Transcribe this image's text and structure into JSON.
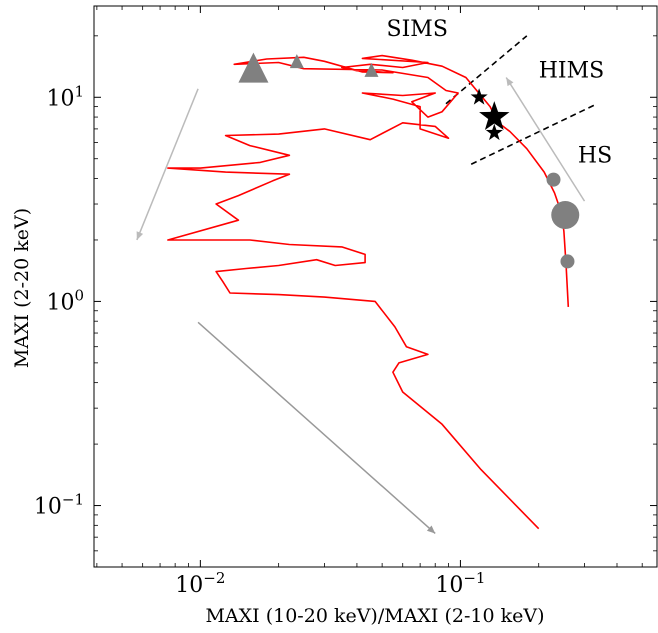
{
  "chart_data": {
    "type": "line",
    "xlabel": "MAXI (10-20 keV)/MAXI (2-10 keV)",
    "ylabel": "MAXI (2-20 keV)",
    "xscale": "log",
    "yscale": "log",
    "xlim": [
      0.0039,
      0.57
    ],
    "ylim": [
      0.05,
      28
    ],
    "grid": false,
    "x_ticks": [
      {
        "value": 0.01,
        "base": "10",
        "exp": "−2"
      },
      {
        "value": 0.1,
        "base": "10",
        "exp": "−1"
      }
    ],
    "y_ticks": [
      {
        "value": 0.1,
        "base": "10",
        "exp": "−1"
      },
      {
        "value": 1,
        "base": "10",
        "exp": "0"
      },
      {
        "value": 10,
        "base": "10",
        "exp": "1"
      }
    ],
    "series": [
      {
        "color": "#ff0000",
        "points": [
          [
            0.26,
            0.94
          ],
          [
            0.255,
            1.5
          ],
          [
            0.25,
            2.2
          ],
          [
            0.245,
            2.7
          ],
          [
            0.23,
            3.4
          ],
          [
            0.21,
            4.3
          ],
          [
            0.18,
            5.6
          ],
          [
            0.155,
            6.8
          ],
          [
            0.14,
            7.5
          ],
          [
            0.13,
            9.0
          ],
          [
            0.105,
            12.5
          ],
          [
            0.085,
            14.2
          ],
          [
            0.065,
            15.2
          ],
          [
            0.05,
            16.0
          ],
          [
            0.042,
            15.5
          ],
          [
            0.075,
            14.8
          ],
          [
            0.06,
            14.0
          ],
          [
            0.045,
            14.5
          ],
          [
            0.035,
            14.0
          ],
          [
            0.04,
            13.5
          ],
          [
            0.055,
            13.2
          ],
          [
            0.042,
            13.3
          ],
          [
            0.03,
            15.0
          ],
          [
            0.025,
            15.7
          ],
          [
            0.018,
            15.4
          ],
          [
            0.0135,
            14.5
          ],
          [
            0.02,
            14.8
          ],
          [
            0.025,
            13.8
          ],
          [
            0.05,
            13.6
          ],
          [
            0.075,
            12.5
          ],
          [
            0.088,
            10.8
          ],
          [
            0.098,
            10.5
          ],
          [
            0.085,
            8.5
          ],
          [
            0.075,
            8.0
          ],
          [
            0.065,
            9.5
          ],
          [
            0.08,
            10.5
          ],
          [
            0.06,
            10.2
          ],
          [
            0.042,
            10.5
          ],
          [
            0.055,
            9.8
          ],
          [
            0.07,
            9.0
          ],
          [
            0.07,
            7.0
          ],
          [
            0.09,
            6.3
          ],
          [
            0.08,
            7.2
          ],
          [
            0.06,
            7.5
          ],
          [
            0.045,
            6.2
          ],
          [
            0.03,
            7.0
          ],
          [
            0.02,
            6.6
          ],
          [
            0.0125,
            6.5
          ],
          [
            0.0155,
            5.8
          ],
          [
            0.022,
            5.2
          ],
          [
            0.017,
            4.8
          ],
          [
            0.01,
            4.5
          ],
          [
            0.0075,
            4.5
          ],
          [
            0.0125,
            4.3
          ],
          [
            0.022,
            4.2
          ],
          [
            0.019,
            3.9
          ],
          [
            0.014,
            3.3
          ],
          [
            0.0115,
            3.0
          ],
          [
            0.014,
            2.5
          ],
          [
            0.0075,
            2.0
          ],
          [
            0.012,
            2.0
          ],
          [
            0.0155,
            2.0
          ],
          [
            0.022,
            1.9
          ],
          [
            0.035,
            1.85
          ],
          [
            0.043,
            1.7
          ],
          [
            0.043,
            1.55
          ],
          [
            0.033,
            1.5
          ],
          [
            0.028,
            1.6
          ],
          [
            0.02,
            1.5
          ],
          [
            0.015,
            1.45
          ],
          [
            0.0115,
            1.4
          ],
          [
            0.0122,
            1.25
          ],
          [
            0.013,
            1.1
          ],
          [
            0.02,
            1.08
          ],
          [
            0.03,
            1.05
          ],
          [
            0.047,
            1.0
          ],
          [
            0.056,
            0.75
          ],
          [
            0.062,
            0.6
          ],
          [
            0.075,
            0.55
          ],
          [
            0.058,
            0.5
          ],
          [
            0.055,
            0.45
          ],
          [
            0.06,
            0.36
          ],
          [
            0.085,
            0.25
          ],
          [
            0.12,
            0.15
          ],
          [
            0.2,
            0.077
          ]
        ]
      }
    ],
    "triangles": [
      {
        "x": 0.016,
        "y": 13.5,
        "size": "large"
      },
      {
        "x": 0.0235,
        "y": 14.8,
        "size": "small"
      },
      {
        "x": 0.0455,
        "y": 13.4,
        "size": "small"
      }
    ],
    "stars": [
      {
        "x": 0.118,
        "y": 10.0,
        "size": "small"
      },
      {
        "x": 0.135,
        "y": 8.0,
        "size": "large"
      },
      {
        "x": 0.135,
        "y": 6.7,
        "size": "small"
      }
    ],
    "circles": [
      {
        "x": 0.228,
        "y": 3.95,
        "size": "medium"
      },
      {
        "x": 0.253,
        "y": 2.65,
        "size": "large"
      },
      {
        "x": 0.258,
        "y": 1.57,
        "size": "medium"
      }
    ],
    "dashed_lines": [
      {
        "from": [
          0.088,
          9.3
        ],
        "to": [
          0.18,
          20
        ]
      },
      {
        "from": [
          0.11,
          4.7
        ],
        "to": [
          0.33,
          9.2
        ]
      }
    ],
    "arrows": [
      {
        "from": [
          0.0098,
          11
        ],
        "to": [
          0.0057,
          2.0
        ],
        "color": "#bbbbbb"
      },
      {
        "from": [
          0.0098,
          0.79
        ],
        "to": [
          0.08,
          0.073
        ],
        "color": "#999999"
      },
      {
        "from": [
          0.3,
          3.1
        ],
        "to": [
          0.15,
          12.5
        ],
        "color": "#bbbbbb"
      }
    ],
    "annotations": [
      {
        "text": "SIMS",
        "x": 0.052,
        "y": 20
      },
      {
        "text": "HIMS",
        "x": 0.2,
        "y": 12.5
      },
      {
        "text": "HS",
        "x": 0.283,
        "y": 4.8
      }
    ],
    "colors": {
      "line": "#ff0000",
      "marker_gray": "#808080",
      "marker_black": "#000000"
    }
  }
}
